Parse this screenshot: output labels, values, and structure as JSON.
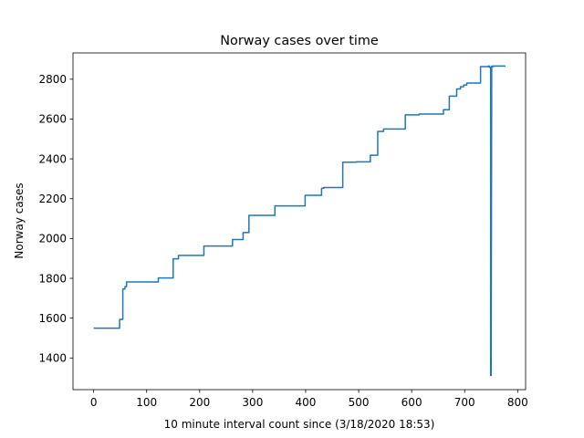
{
  "chart_data": {
    "type": "line",
    "title": "Norway cases over time",
    "xlabel": "10 minute interval count since (3/18/2020 18:53)",
    "ylabel": "Norway cases",
    "xlim": [
      -39,
      815
    ],
    "ylim": [
      1241,
      2932
    ],
    "xticks": [
      0,
      100,
      200,
      300,
      400,
      500,
      600,
      700,
      800
    ],
    "yticks": [
      1400,
      1600,
      1800,
      2000,
      2200,
      2400,
      2600,
      2800
    ],
    "grid": false,
    "series": [
      {
        "color": "#1f77b4",
        "points": [
          [
            0,
            1550
          ],
          [
            49,
            1550
          ],
          [
            49,
            1594
          ],
          [
            55,
            1594
          ],
          [
            55,
            1746
          ],
          [
            59,
            1746
          ],
          [
            59,
            1758
          ],
          [
            62,
            1758
          ],
          [
            62,
            1782
          ],
          [
            122,
            1782
          ],
          [
            122,
            1802
          ],
          [
            150,
            1802
          ],
          [
            150,
            1898
          ],
          [
            160,
            1898
          ],
          [
            160,
            1915
          ],
          [
            208,
            1915
          ],
          [
            208,
            1962
          ],
          [
            262,
            1962
          ],
          [
            262,
            1995
          ],
          [
            282,
            1995
          ],
          [
            282,
            2030
          ],
          [
            293,
            2030
          ],
          [
            293,
            2116
          ],
          [
            342,
            2116
          ],
          [
            342,
            2164
          ],
          [
            399,
            2164
          ],
          [
            399,
            2217
          ],
          [
            430,
            2217
          ],
          [
            430,
            2252
          ],
          [
            434,
            2252
          ],
          [
            434,
            2256
          ],
          [
            470,
            2256
          ],
          [
            470,
            2383
          ],
          [
            495,
            2383
          ],
          [
            495,
            2385
          ],
          [
            522,
            2385
          ],
          [
            522,
            2418
          ],
          [
            536,
            2418
          ],
          [
            536,
            2538
          ],
          [
            547,
            2538
          ],
          [
            547,
            2550
          ],
          [
            588,
            2550
          ],
          [
            588,
            2621
          ],
          [
            614,
            2621
          ],
          [
            614,
            2625
          ],
          [
            660,
            2625
          ],
          [
            660,
            2647
          ],
          [
            671,
            2647
          ],
          [
            671,
            2715
          ],
          [
            685,
            2715
          ],
          [
            685,
            2751
          ],
          [
            692,
            2751
          ],
          [
            692,
            2762
          ],
          [
            698,
            2762
          ],
          [
            698,
            2771
          ],
          [
            704,
            2771
          ],
          [
            704,
            2781
          ],
          [
            730,
            2781
          ],
          [
            730,
            2863
          ],
          [
            745,
            2863
          ],
          [
            745,
            2866
          ],
          [
            747,
            2866
          ],
          [
            747,
            2860
          ],
          [
            749,
            2860
          ],
          [
            749,
            1312
          ],
          [
            750,
            1312
          ],
          [
            751,
            2866
          ],
          [
            752,
            2866
          ],
          [
            752,
            2863
          ],
          [
            754,
            2863
          ],
          [
            754,
            2866
          ],
          [
            777,
            2866
          ]
        ]
      }
    ]
  }
}
